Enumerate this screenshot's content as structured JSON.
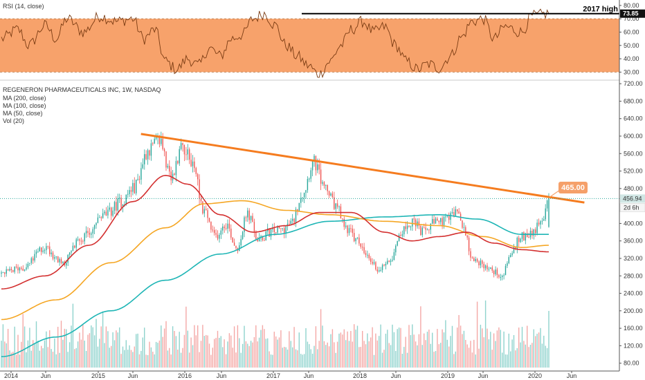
{
  "chart_data": {
    "type": "candlestick",
    "ticker_title": "REGENERON PHARMACEUTICALS INC, 1W, NASDAQ",
    "indicators": [
      "MA (200, close)",
      "MA (100, close)",
      "MA (50, close)",
      "Vol (20)"
    ],
    "x_tick_labels": [
      "2014",
      "Jun",
      "2015",
      "Jun",
      "2016",
      "Jun",
      "2017",
      "Jun",
      "2018",
      "Jun",
      "2019",
      "Jun",
      "2020",
      "Jun"
    ],
    "price_axis": {
      "ylim": [
        70,
        725
      ],
      "ticks": [
        "720.00",
        "680.00",
        "640.00",
        "600.00",
        "560.00",
        "520.00",
        "480.00",
        "400.00",
        "360.00",
        "320.00",
        "280.00",
        "240.00",
        "200.00",
        "160.00",
        "120.00",
        "80.00"
      ],
      "tick_values": [
        720,
        680,
        640,
        600,
        560,
        520,
        480,
        400,
        360,
        320,
        280,
        240,
        200,
        160,
        120,
        80
      ]
    },
    "price_keypoints": [
      {
        "t": 0,
        "v": 285
      },
      {
        "t": 0.04,
        "v": 300
      },
      {
        "t": 0.08,
        "v": 345
      },
      {
        "t": 0.11,
        "v": 310
      },
      {
        "t": 0.15,
        "v": 370
      },
      {
        "t": 0.19,
        "v": 420
      },
      {
        "t": 0.22,
        "v": 450
      },
      {
        "t": 0.24,
        "v": 480
      },
      {
        "t": 0.27,
        "v": 570
      },
      {
        "t": 0.29,
        "v": 590
      },
      {
        "t": 0.31,
        "v": 500
      },
      {
        "t": 0.33,
        "v": 580
      },
      {
        "t": 0.35,
        "v": 535
      },
      {
        "t": 0.37,
        "v": 430
      },
      {
        "t": 0.39,
        "v": 370
      },
      {
        "t": 0.41,
        "v": 400
      },
      {
        "t": 0.43,
        "v": 345
      },
      {
        "t": 0.45,
        "v": 420
      },
      {
        "t": 0.47,
        "v": 360
      },
      {
        "t": 0.49,
        "v": 380
      },
      {
        "t": 0.51,
        "v": 385
      },
      {
        "t": 0.53,
        "v": 400
      },
      {
        "t": 0.55,
        "v": 470
      },
      {
        "t": 0.57,
        "v": 540
      },
      {
        "t": 0.59,
        "v": 485
      },
      {
        "t": 0.61,
        "v": 440
      },
      {
        "t": 0.63,
        "v": 390
      },
      {
        "t": 0.65,
        "v": 360
      },
      {
        "t": 0.67,
        "v": 320
      },
      {
        "t": 0.69,
        "v": 295
      },
      {
        "t": 0.71,
        "v": 320
      },
      {
        "t": 0.73,
        "v": 380
      },
      {
        "t": 0.75,
        "v": 405
      },
      {
        "t": 0.77,
        "v": 380
      },
      {
        "t": 0.79,
        "v": 400
      },
      {
        "t": 0.81,
        "v": 405
      },
      {
        "t": 0.83,
        "v": 425
      },
      {
        "t": 0.845,
        "v": 390
      },
      {
        "t": 0.86,
        "v": 320
      },
      {
        "t": 0.88,
        "v": 305
      },
      {
        "t": 0.9,
        "v": 290
      },
      {
        "t": 0.915,
        "v": 280
      },
      {
        "t": 0.93,
        "v": 330
      },
      {
        "t": 0.95,
        "v": 370
      },
      {
        "t": 0.97,
        "v": 380
      },
      {
        "t": 0.985,
        "v": 400
      },
      {
        "t": 1.0,
        "v": 456.94
      }
    ],
    "ma200_keypoints": [
      {
        "t": 0,
        "v": 95
      },
      {
        "t": 0.1,
        "v": 140
      },
      {
        "t": 0.2,
        "v": 200
      },
      {
        "t": 0.3,
        "v": 270
      },
      {
        "t": 0.4,
        "v": 330
      },
      {
        "t": 0.5,
        "v": 375
      },
      {
        "t": 0.6,
        "v": 405
      },
      {
        "t": 0.7,
        "v": 415
      },
      {
        "t": 0.8,
        "v": 420
      },
      {
        "t": 0.87,
        "v": 410
      },
      {
        "t": 0.95,
        "v": 375
      },
      {
        "t": 1.0,
        "v": 375
      }
    ],
    "ma100_keypoints": [
      {
        "t": 0,
        "v": 180
      },
      {
        "t": 0.1,
        "v": 225
      },
      {
        "t": 0.2,
        "v": 310
      },
      {
        "t": 0.3,
        "v": 390
      },
      {
        "t": 0.37,
        "v": 445
      },
      {
        "t": 0.44,
        "v": 452
      },
      {
        "t": 0.52,
        "v": 430
      },
      {
        "t": 0.6,
        "v": 420
      },
      {
        "t": 0.7,
        "v": 405
      },
      {
        "t": 0.8,
        "v": 395
      },
      {
        "t": 0.88,
        "v": 370
      },
      {
        "t": 0.95,
        "v": 345
      },
      {
        "t": 1.0,
        "v": 350
      }
    ],
    "ma50_keypoints": [
      {
        "t": 0,
        "v": 250
      },
      {
        "t": 0.08,
        "v": 280
      },
      {
        "t": 0.16,
        "v": 350
      },
      {
        "t": 0.24,
        "v": 450
      },
      {
        "t": 0.3,
        "v": 510
      },
      {
        "t": 0.34,
        "v": 490
      },
      {
        "t": 0.4,
        "v": 420
      },
      {
        "t": 0.46,
        "v": 380
      },
      {
        "t": 0.52,
        "v": 395
      },
      {
        "t": 0.58,
        "v": 425
      },
      {
        "t": 0.64,
        "v": 425
      },
      {
        "t": 0.7,
        "v": 380
      },
      {
        "t": 0.75,
        "v": 360
      },
      {
        "t": 0.8,
        "v": 370
      },
      {
        "t": 0.85,
        "v": 380
      },
      {
        "t": 0.9,
        "v": 355
      },
      {
        "t": 0.95,
        "v": 340
      },
      {
        "t": 1.0,
        "v": 335
      }
    ],
    "trendline": {
      "from": {
        "t": 0.255,
        "v": 605
      },
      "to": {
        "t": 1.065,
        "v": 448
      },
      "color": "#f57c1f"
    },
    "last_price_badge": "456.94",
    "countdown_badge": "2d 6h",
    "callout_value": "465.00",
    "rsi": {
      "title": "RSI (14, close)",
      "ylim": [
        25,
        82
      ],
      "ticks": [
        "80.00",
        "70.00",
        "60.00",
        "50.00",
        "40.00",
        "30.00"
      ],
      "tick_values": [
        80,
        70,
        60,
        50,
        40,
        30
      ],
      "band": [
        30,
        70
      ],
      "current_value": "73.85",
      "reference_level": 73.85,
      "reference_label": "2017 high",
      "keypoints": [
        {
          "t": 0,
          "v": 55
        },
        {
          "t": 0.03,
          "v": 62
        },
        {
          "t": 0.05,
          "v": 50
        },
        {
          "t": 0.08,
          "v": 65
        },
        {
          "t": 0.1,
          "v": 55
        },
        {
          "t": 0.12,
          "v": 70
        },
        {
          "t": 0.15,
          "v": 60
        },
        {
          "t": 0.18,
          "v": 72
        },
        {
          "t": 0.21,
          "v": 68
        },
        {
          "t": 0.24,
          "v": 70
        },
        {
          "t": 0.26,
          "v": 55
        },
        {
          "t": 0.28,
          "v": 62
        },
        {
          "t": 0.3,
          "v": 38
        },
        {
          "t": 0.32,
          "v": 32
        },
        {
          "t": 0.34,
          "v": 40
        },
        {
          "t": 0.36,
          "v": 35
        },
        {
          "t": 0.38,
          "v": 48
        },
        {
          "t": 0.4,
          "v": 42
        },
        {
          "t": 0.42,
          "v": 55
        },
        {
          "t": 0.44,
          "v": 58
        },
        {
          "t": 0.46,
          "v": 70
        },
        {
          "t": 0.48,
          "v": 74
        },
        {
          "t": 0.5,
          "v": 65
        },
        {
          "t": 0.52,
          "v": 50
        },
        {
          "t": 0.54,
          "v": 42
        },
        {
          "t": 0.56,
          "v": 35
        },
        {
          "t": 0.58,
          "v": 28
        },
        {
          "t": 0.6,
          "v": 38
        },
        {
          "t": 0.62,
          "v": 50
        },
        {
          "t": 0.64,
          "v": 62
        },
        {
          "t": 0.66,
          "v": 68
        },
        {
          "t": 0.68,
          "v": 60
        },
        {
          "t": 0.7,
          "v": 64
        },
        {
          "t": 0.72,
          "v": 50
        },
        {
          "t": 0.74,
          "v": 38
        },
        {
          "t": 0.76,
          "v": 32
        },
        {
          "t": 0.78,
          "v": 36
        },
        {
          "t": 0.8,
          "v": 33
        },
        {
          "t": 0.82,
          "v": 42
        },
        {
          "t": 0.84,
          "v": 56
        },
        {
          "t": 0.86,
          "v": 68
        },
        {
          "t": 0.88,
          "v": 70
        },
        {
          "t": 0.9,
          "v": 55
        },
        {
          "t": 0.92,
          "v": 64
        },
        {
          "t": 0.95,
          "v": 60
        },
        {
          "t": 0.97,
          "v": 72
        },
        {
          "t": 1.0,
          "v": 73.85
        }
      ]
    },
    "volume": {
      "seed_note": "",
      "max_value": 100
    },
    "colors": {
      "up": "#26a69a",
      "down": "#ef5350",
      "ma200": "#1db5b5",
      "ma100": "#f5a623",
      "ma50": "#d32f2f",
      "rsi_band": "#f7a26b",
      "rsi_line": "#7a3b12",
      "volume_up": "#8fd3cd",
      "volume_down": "#f4a8a6",
      "callout": "#f5a06a",
      "last_price_badge": "#d0e6e4",
      "countdown_badge": "#f5f5f5"
    }
  }
}
